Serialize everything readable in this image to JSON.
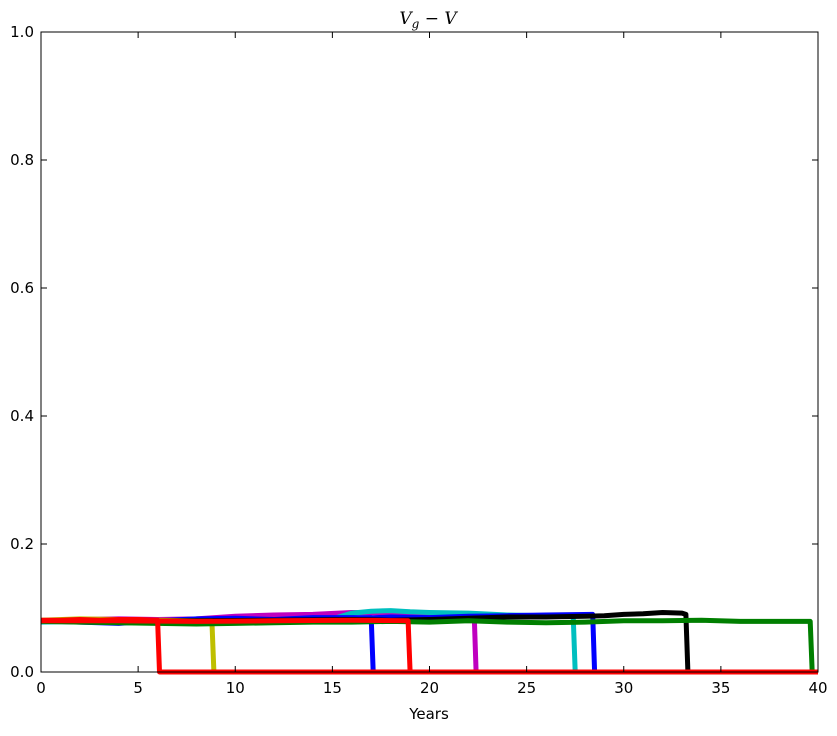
{
  "chart_data": {
    "type": "line",
    "title": "V_g − V",
    "title_main": "V",
    "title_sub": "g",
    "title_rest": " − V",
    "xlabel": "Years",
    "ylabel": "",
    "xlim": [
      0,
      40
    ],
    "ylim": [
      0,
      1.0
    ],
    "xticks": [
      0,
      5,
      10,
      15,
      20,
      25,
      30,
      35,
      40
    ],
    "xtick_labels": [
      "0",
      "5",
      "10",
      "15",
      "20",
      "25",
      "30",
      "35",
      "40"
    ],
    "yticks": [
      0.0,
      0.2,
      0.4,
      0.6,
      0.8,
      1.0
    ],
    "ytick_labels": [
      "0.0",
      "0.2",
      "0.4",
      "0.6",
      "0.8",
      "1.0"
    ],
    "grid": false,
    "legend": "none",
    "series": [
      {
        "name": "magenta",
        "color": "#bf00bf",
        "x": [
          0,
          2,
          4,
          6,
          8,
          10,
          12,
          14,
          16,
          18,
          20,
          22,
          22.3,
          22.4,
          40
        ],
        "y": [
          0.08,
          0.082,
          0.083,
          0.082,
          0.083,
          0.087,
          0.089,
          0.09,
          0.093,
          0.092,
          0.088,
          0.09,
          0.09,
          0.0,
          0.0
        ]
      },
      {
        "name": "cyan",
        "color": "#00bfbf",
        "x": [
          0,
          4,
          8,
          12,
          15,
          16,
          17,
          18,
          19,
          20,
          22,
          24,
          26,
          27.4,
          27.5,
          40
        ],
        "y": [
          0.078,
          0.08,
          0.079,
          0.08,
          0.083,
          0.092,
          0.095,
          0.096,
          0.094,
          0.093,
          0.092,
          0.089,
          0.088,
          0.087,
          0.0,
          0.0
        ]
      },
      {
        "name": "blue",
        "color": "#0000ff",
        "x": [
          0,
          2,
          4,
          6,
          8,
          10,
          12,
          14,
          16,
          17.0,
          17.1,
          40
        ],
        "y": [
          0.08,
          0.078,
          0.076,
          0.08,
          0.083,
          0.084,
          0.082,
          0.085,
          0.085,
          0.085,
          0.0,
          0.0
        ]
      },
      {
        "name": "blue-2",
        "color": "#0000ff",
        "x": [
          0,
          4,
          8,
          12,
          16,
          18,
          20,
          22,
          24,
          26,
          28.4,
          28.5,
          40
        ],
        "y": [
          0.08,
          0.078,
          0.08,
          0.079,
          0.083,
          0.086,
          0.085,
          0.087,
          0.088,
          0.089,
          0.09,
          0.0,
          0.0
        ]
      },
      {
        "name": "yellow",
        "color": "#bfbf00",
        "x": [
          0,
          2,
          4,
          6,
          8,
          8.8,
          8.9,
          40
        ],
        "y": [
          0.081,
          0.083,
          0.082,
          0.081,
          0.08,
          0.08,
          0.0,
          0.0
        ]
      },
      {
        "name": "black",
        "color": "#000000",
        "x": [
          0,
          4,
          8,
          12,
          16,
          18,
          20,
          22,
          24,
          26,
          28,
          29,
          30,
          31,
          32,
          33,
          33.2,
          33.3,
          40
        ],
        "y": [
          0.08,
          0.079,
          0.08,
          0.081,
          0.082,
          0.081,
          0.082,
          0.084,
          0.086,
          0.086,
          0.087,
          0.088,
          0.09,
          0.091,
          0.093,
          0.092,
          0.09,
          0.0,
          0.0
        ]
      },
      {
        "name": "green",
        "color": "#007f00",
        "x": [
          0,
          2,
          4,
          6,
          8,
          10,
          12,
          14,
          16,
          18,
          20,
          22,
          24,
          26,
          28,
          30,
          32,
          34,
          36,
          38,
          39.6,
          39.7,
          40
        ],
        "y": [
          0.079,
          0.078,
          0.077,
          0.076,
          0.075,
          0.076,
          0.077,
          0.078,
          0.078,
          0.079,
          0.078,
          0.08,
          0.078,
          0.077,
          0.078,
          0.08,
          0.08,
          0.081,
          0.079,
          0.079,
          0.079,
          0.0,
          0.0
        ]
      },
      {
        "name": "red",
        "color": "#ff0000",
        "x": [
          0,
          1,
          2,
          3,
          4,
          5,
          6.0,
          6.1,
          40
        ],
        "y": [
          0.081,
          0.081,
          0.082,
          0.081,
          0.082,
          0.082,
          0.081,
          0.0,
          0.0
        ]
      },
      {
        "name": "red-2",
        "color": "#ff0000",
        "x": [
          0,
          4,
          8,
          12,
          16,
          18.9,
          19.0,
          40
        ],
        "y": [
          0.08,
          0.08,
          0.079,
          0.08,
          0.081,
          0.08,
          0.0,
          0.0
        ]
      }
    ]
  }
}
